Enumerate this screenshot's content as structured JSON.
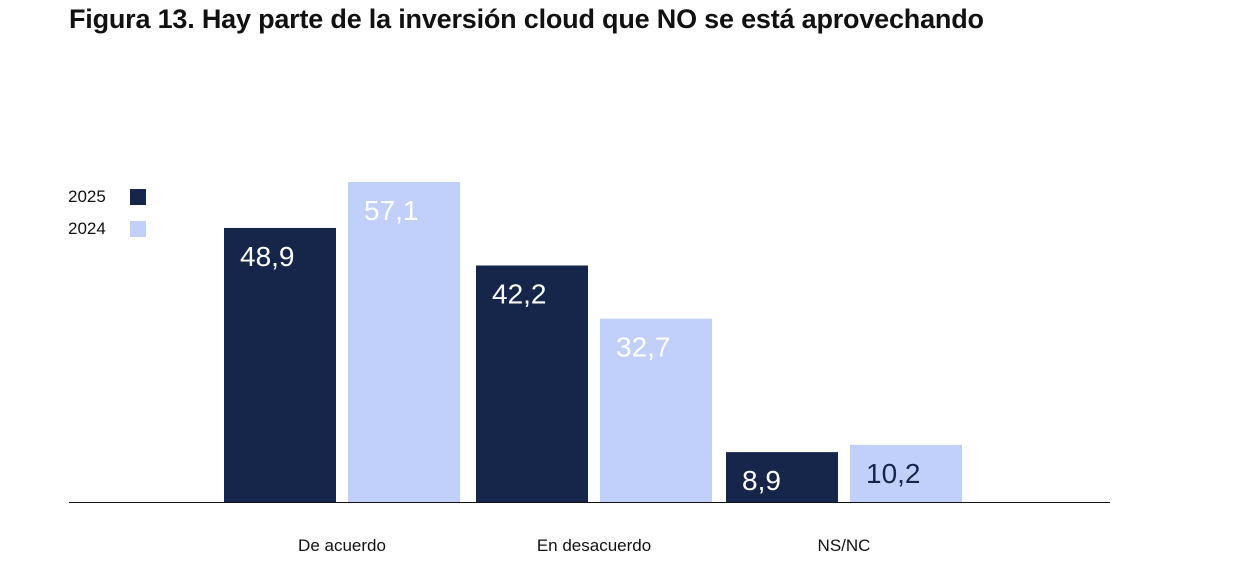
{
  "title": "Figura 13. Hay parte de la inversión cloud que NO se está aprovechando",
  "colors": {
    "series_2025": "#16264a",
    "series_2024": "#c0d0fb",
    "label_on_2025": "#ffffff",
    "label_on_2024": "#ffffff",
    "label_on_2024_short": "#16264a",
    "axis": "#111111"
  },
  "legend": [
    {
      "label": "2025",
      "color": "#16264a"
    },
    {
      "label": "2024",
      "color": "#c0d0fb"
    }
  ],
  "chart_data": {
    "type": "bar",
    "title": "Figura 13. Hay parte de la inversión cloud que NO se está aprovechando",
    "categories": [
      "De acuerdo",
      "En desacuerdo",
      "NS/NC"
    ],
    "series": [
      {
        "name": "2025",
        "values": [
          48.9,
          42.2,
          8.9
        ],
        "labels": [
          "48,9",
          "42,2",
          "8,9"
        ]
      },
      {
        "name": "2024",
        "values": [
          57.1,
          32.7,
          10.2
        ],
        "labels": [
          "57,1",
          "32,7",
          "10,2"
        ]
      }
    ],
    "xlabel": "",
    "ylabel": "",
    "ylim": [
      0,
      60
    ],
    "grid": false,
    "legend_position": "top-left"
  }
}
